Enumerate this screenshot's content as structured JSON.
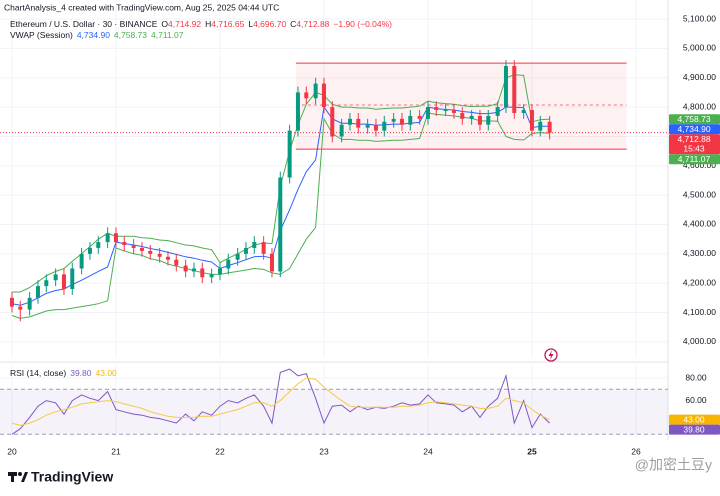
{
  "header": {
    "caption": "ChartAnalysis_4 created with TradingView.com, Aug 25, 2025 04:44 UTC",
    "symbol": "Ethereum / U.S. Dollar · 30 · BINANCE",
    "ohlc": [
      {
        "letter": "O",
        "value": "4,714.92"
      },
      {
        "letter": "H",
        "value": "4,716.65"
      },
      {
        "letter": "L",
        "value": "4,696.70"
      },
      {
        "letter": "C",
        "value": "4,712.88"
      }
    ],
    "change": "−1.90 (−0.04%)"
  },
  "chart_data": {
    "type": "candlestick",
    "x": [
      20,
      20.08,
      20.17,
      20.25,
      20.33,
      20.42,
      20.5,
      20.58,
      20.67,
      20.75,
      20.83,
      20.92,
      21,
      21.08,
      21.17,
      21.25,
      21.33,
      21.42,
      21.5,
      21.58,
      21.67,
      21.75,
      21.83,
      21.92,
      22,
      22.08,
      22.17,
      22.25,
      22.33,
      22.42,
      22.5,
      22.58,
      22.67,
      22.75,
      22.83,
      22.92,
      23,
      23.08,
      23.17,
      23.25,
      23.33,
      23.42,
      23.5,
      23.58,
      23.67,
      23.75,
      23.83,
      23.92,
      24,
      24.08,
      24.17,
      24.25,
      24.33,
      24.42,
      24.5,
      24.58,
      24.67,
      24.75,
      24.83,
      24.92,
      25,
      25.08,
      25.17
    ],
    "candles": {
      "up_color": "#089981",
      "down_color": "#f23645",
      "open": [
        4150,
        4120,
        4110,
        4150,
        4190,
        4210,
        4230,
        4180,
        4250,
        4300,
        4320,
        4340,
        4370,
        4340,
        4330,
        4320,
        4310,
        4300,
        4290,
        4280,
        4260,
        4240,
        4250,
        4220,
        4230,
        4250,
        4280,
        4300,
        4320,
        4340,
        4300,
        4240,
        4560,
        4720,
        4850,
        4830,
        4880,
        4800,
        4700,
        4740,
        4760,
        4730,
        4740,
        4720,
        4750,
        4760,
        4740,
        4770,
        4760,
        4800,
        4790,
        4790,
        4780,
        4760,
        4770,
        4740,
        4770,
        4800,
        4940,
        4780,
        4790,
        4720,
        4750
      ],
      "high": [
        4170,
        4140,
        4170,
        4210,
        4230,
        4250,
        4250,
        4270,
        4320,
        4340,
        4360,
        4390,
        4390,
        4360,
        4350,
        4340,
        4330,
        4320,
        4310,
        4300,
        4280,
        4270,
        4270,
        4250,
        4270,
        4300,
        4320,
        4340,
        4360,
        4360,
        4320,
        4580,
        4740,
        4870,
        4870,
        4900,
        4900,
        4820,
        4760,
        4780,
        4780,
        4760,
        4760,
        4770,
        4780,
        4780,
        4790,
        4790,
        4820,
        4820,
        4810,
        4810,
        4800,
        4790,
        4790,
        4790,
        4820,
        4960,
        4960,
        4810,
        4810,
        4770,
        4770
      ],
      "low": [
        4100,
        4070,
        4090,
        4130,
        4170,
        4190,
        4160,
        4160,
        4230,
        4280,
        4300,
        4320,
        4320,
        4310,
        4300,
        4290,
        4280,
        4270,
        4260,
        4240,
        4220,
        4220,
        4200,
        4200,
        4210,
        4230,
        4260,
        4280,
        4300,
        4280,
        4220,
        4220,
        4540,
        4700,
        4810,
        4810,
        4780,
        4680,
        4680,
        4720,
        4710,
        4710,
        4700,
        4700,
        4730,
        4720,
        4720,
        4740,
        4740,
        4770,
        4770,
        4760,
        4740,
        4740,
        4720,
        4720,
        4750,
        4780,
        4760,
        4760,
        4700,
        4700,
        4690
      ],
      "close": [
        4120,
        4110,
        4150,
        4190,
        4210,
        4230,
        4180,
        4250,
        4300,
        4320,
        4340,
        4370,
        4340,
        4330,
        4320,
        4310,
        4300,
        4290,
        4280,
        4260,
        4240,
        4250,
        4220,
        4230,
        4250,
        4280,
        4300,
        4320,
        4340,
        4300,
        4240,
        4560,
        4720,
        4850,
        4830,
        4880,
        4800,
        4700,
        4740,
        4760,
        4730,
        4740,
        4720,
        4750,
        4760,
        4740,
        4770,
        4760,
        4800,
        4790,
        4790,
        4780,
        4760,
        4770,
        4740,
        4770,
        4800,
        4940,
        4780,
        4790,
        4720,
        4750,
        4712.88
      ]
    },
    "xlim": [
      19.885,
      26.308
    ],
    "xticks": [
      20,
      21,
      22,
      23,
      24,
      25,
      26
    ],
    "ylim": [
      3945,
      5165
    ],
    "yticks": [
      {
        "value": 4000,
        "label": "4,000.00"
      },
      {
        "value": 4100,
        "label": "4,100.00"
      },
      {
        "value": 4200,
        "label": "4,200.00"
      },
      {
        "value": 4300,
        "label": "4,300.00"
      },
      {
        "value": 4400,
        "label": "4,400.00"
      },
      {
        "value": 4500,
        "label": "4,500.00"
      },
      {
        "value": 4600,
        "label": "4,600.00"
      },
      {
        "value": 4700,
        "label": "4,700.00"
      },
      {
        "value": 4800,
        "label": "4,800.00"
      },
      {
        "value": 4900,
        "label": "4,900.00"
      },
      {
        "value": 5000,
        "label": "5,000.00"
      },
      {
        "value": 5100,
        "label": "5,100.00"
      }
    ],
    "grid": true,
    "range_box": {
      "x": [
        22.73,
        25.91
      ],
      "top": 4950,
      "bottom": 4657,
      "mid": 4807,
      "color": "#f23645"
    },
    "vwap": {
      "label": "VWAP (Session)",
      "value_labels": [
        {
          "text": "4,734.90",
          "color": "#2962ff"
        },
        {
          "text": "4,758.73",
          "color": "#4caf50"
        },
        {
          "text": "4,711.07",
          "color": "#4caf50"
        }
      ],
      "lines": [
        {
          "color": "#2962ff",
          "values": [
            4130,
            4125,
            4135,
            4150,
            4165,
            4175,
            4180,
            4195,
            4210,
            4225,
            4240,
            4255,
            4340,
            4335,
            4330,
            4325,
            4318,
            4312,
            4305,
            4298,
            4290,
            4285,
            4278,
            4272,
            4250,
            4260,
            4270,
            4280,
            4290,
            4292,
            4285,
            4380,
            4450,
            4520,
            4580,
            4620,
            4800,
            4760,
            4745,
            4745,
            4742,
            4742,
            4738,
            4740,
            4742,
            4742,
            4745,
            4748,
            4800,
            4795,
            4792,
            4790,
            4785,
            4782,
            4778,
            4778,
            4782,
            4800,
            4800,
            4798,
            4730,
            4735,
            4735
          ]
        },
        {
          "color": "#4caf50",
          "values": [
            4170,
            4170,
            4185,
            4205,
            4225,
            4240,
            4250,
            4275,
            4300,
            4325,
            4350,
            4370,
            4360,
            4360,
            4360,
            4355,
            4353,
            4347,
            4345,
            4338,
            4330,
            4327,
            4320,
            4314,
            4270,
            4285,
            4300,
            4315,
            4330,
            4337,
            4335,
            4530,
            4650,
            4740,
            4810,
            4850,
            4840,
            4810,
            4800,
            4800,
            4797,
            4797,
            4793,
            4795,
            4797,
            4797,
            4800,
            4803,
            4820,
            4815,
            4812,
            4810,
            4805,
            4802,
            4803,
            4803,
            4812,
            4900,
            4910,
            4908,
            4750,
            4757,
            4759
          ]
        },
        {
          "color": "#4caf50",
          "values": [
            4090,
            4080,
            4085,
            4095,
            4105,
            4110,
            4110,
            4115,
            4120,
            4125,
            4130,
            4140,
            4320,
            4310,
            4300,
            4295,
            4283,
            4277,
            4265,
            4258,
            4250,
            4243,
            4236,
            4230,
            4230,
            4235,
            4240,
            4245,
            4250,
            4247,
            4235,
            4230,
            4250,
            4300,
            4350,
            4390,
            4760,
            4710,
            4690,
            4690,
            4687,
            4687,
            4683,
            4685,
            4687,
            4687,
            4690,
            4693,
            4780,
            4775,
            4772,
            4770,
            4765,
            4762,
            4753,
            4753,
            4752,
            4700,
            4690,
            4688,
            4710,
            4713,
            4711
          ]
        }
      ]
    },
    "price_tags": [
      {
        "value": 4758.73,
        "label": "4,758.73",
        "color": "#4caf50"
      },
      {
        "value": 4734.9,
        "label": "4,734.90",
        "color": "#2962ff"
      },
      {
        "value": 4712.88,
        "label": "4,712.88",
        "sub": "15:43",
        "color": "#f23645"
      },
      {
        "value": 4711.07,
        "label": "4,711.07",
        "color": "#4caf50"
      }
    ],
    "rsi": {
      "label": "RSI (14, close)",
      "value_labels": [
        {
          "text": "39.80",
          "color": "#7e57c2"
        },
        {
          "text": "43.00",
          "color": "#f7b500"
        }
      ],
      "ylim": [
        27.6,
        91.6
      ],
      "yticks": [
        {
          "value": 80,
          "label": "80.00"
        },
        {
          "value": 60,
          "label": "60.00"
        }
      ],
      "band": [
        30,
        70
      ],
      "lines": [
        {
          "color": "#7e57c2",
          "values": [
            30,
            35,
            45,
            55,
            60,
            58,
            48,
            60,
            65,
            62,
            60,
            68,
            52,
            50,
            48,
            47,
            45,
            44,
            42,
            40,
            48,
            42,
            50,
            47,
            55,
            60,
            58,
            62,
            65,
            55,
            40,
            85,
            88,
            82,
            84,
            62,
            40,
            55,
            56,
            50,
            55,
            52,
            54,
            53,
            55,
            58,
            56,
            57,
            65,
            58,
            57,
            56,
            50,
            55,
            45,
            55,
            62,
            82,
            40,
            60,
            36,
            48,
            40
          ]
        },
        {
          "color": "#f7c948",
          "values": [
            40,
            38,
            40,
            43,
            47,
            50,
            52,
            54,
            57,
            58,
            59,
            60,
            59,
            57,
            55,
            53,
            50,
            48,
            46,
            45,
            45,
            45,
            46,
            46,
            48,
            50,
            52,
            55,
            58,
            58,
            55,
            60,
            68,
            75,
            80,
            79,
            72,
            66,
            60,
            55,
            54,
            54,
            54,
            54,
            54,
            55,
            55,
            56,
            58,
            59,
            58,
            57,
            56,
            55,
            53,
            53,
            55,
            62,
            60,
            58,
            52,
            47,
            43
          ]
        }
      ],
      "tags": [
        {
          "value": 43,
          "label": "43.00",
          "color": "#f7b500"
        },
        {
          "value": 39.8,
          "label": "39.80",
          "color": "#7e57c2"
        }
      ]
    }
  },
  "footer": {
    "brand": "TradingView",
    "watermark": "@加密土豆y"
  }
}
